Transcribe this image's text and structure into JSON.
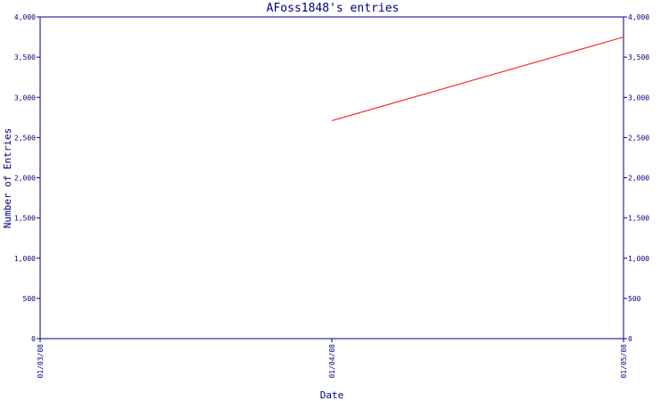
{
  "chart_data": {
    "type": "line",
    "title": "AFoss1848's entries",
    "xlabel": "Date",
    "ylabel": "Number of Entries",
    "x_ticks": [
      "01/03/08",
      "01/04/08",
      "01/05/08"
    ],
    "y_ticks": [
      "0",
      "500",
      "1,000",
      "1,500",
      "2,000",
      "2,500",
      "3,000",
      "3,500",
      "4,000"
    ],
    "y_tick_values": [
      0,
      500,
      1000,
      1500,
      2000,
      2500,
      3000,
      3500,
      4000
    ],
    "ylim": [
      0,
      4000
    ],
    "xlim": [
      "01/03/08",
      "01/05/08"
    ],
    "grid": false,
    "right_axis_mirrors_left": true,
    "series": [
      {
        "color": "#ff0000",
        "points": [
          {
            "x": "01/04/08",
            "y": 2710
          },
          {
            "x": "01/05/08",
            "y": 3750
          }
        ]
      }
    ]
  }
}
